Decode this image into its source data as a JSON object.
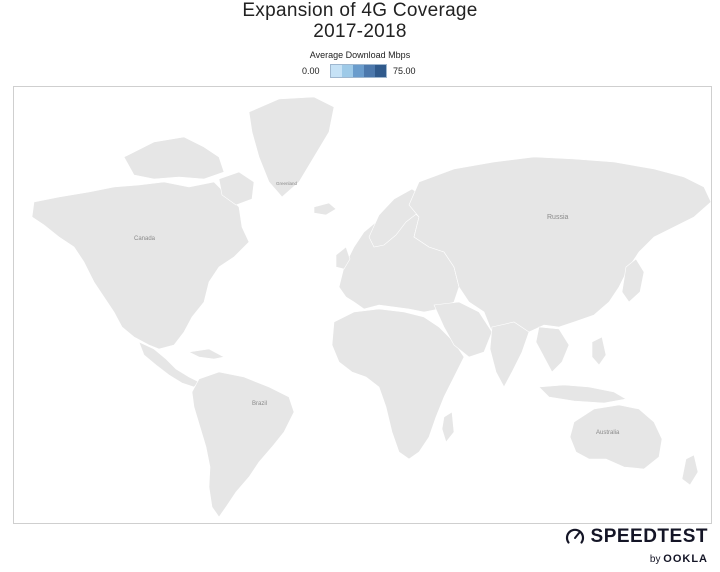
{
  "title": {
    "line1": "Expansion of 4G Coverage",
    "line2": "2017-2018"
  },
  "legend": {
    "title": "Average Download Mbps",
    "min": "0.00",
    "max": "75.00",
    "colors": [
      "#c6e2f6",
      "#9ecae8",
      "#6a9ccc",
      "#4c78ac",
      "#305a8c"
    ]
  },
  "map": {
    "land_color": "#e6e6e6",
    "water_color": "#ffffff",
    "labels": {
      "canada": "Canada",
      "russia": "Russia",
      "greenland": "Greenland",
      "brazil": "Brazil",
      "australia": "Australia"
    }
  },
  "branding": {
    "name": "SPEEDTEST",
    "by": "by",
    "company": "OOKLA"
  }
}
